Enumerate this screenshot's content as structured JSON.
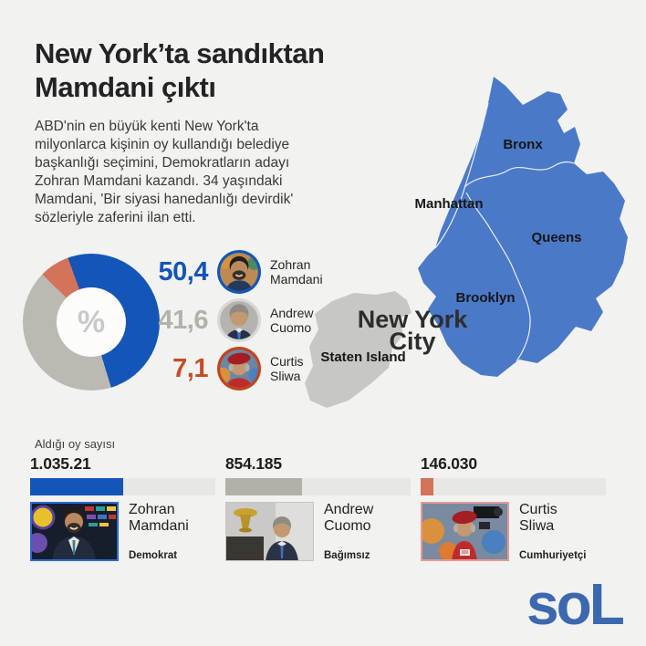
{
  "header": {
    "title_line1": "New York’ta sandıktan",
    "title_line2": "Mamdani çıktı",
    "paragraph": "ABD'nin en büyük kenti New York'ta\nmilyonlarca kişinin oy kullandığı belediye\nbaşkanlığı seçimini, Demokratların adayı\nZohran Mamdani kazandı. 34 yaşındaki\nMamdani, 'Bir siyasi hanedanlığı devirdik'\nsözleriyle zaferini ilan etti."
  },
  "donut": {
    "center_symbol": "%"
  },
  "legend": [
    {
      "value": "50,4",
      "name_line1": "Zohran",
      "name_line2": "Mamdani",
      "color": "#1455b8"
    },
    {
      "value": "41,6",
      "name_line1": "Andrew",
      "name_line2": "Cuomo",
      "color": "#b3b1aa"
    },
    {
      "value": "7,1",
      "name_line1": "Curtis",
      "name_line2": "Sliwa",
      "color": "#c54c28"
    }
  ],
  "map": {
    "labels": {
      "bronx": "Bronx",
      "manhattan": "Manhattan",
      "queens": "Queens",
      "brooklyn": "Brooklyn",
      "staten_island": "Staten Island",
      "city_line1": "New York",
      "city_line2": "City"
    },
    "colors": {
      "boroughs_blue": "#4a79c8",
      "staten_gray": "#c7c7c3",
      "border": "#e9eef7"
    }
  },
  "votes": {
    "section_label": "Aldığı oy sayısı",
    "rows": [
      {
        "count": "1.035.21",
        "name_line1": "Zohran",
        "name_line2": "Mamdani",
        "party": "Demokrat",
        "pct": 50.4
      },
      {
        "count": "854.185",
        "name_line1": "Andrew",
        "name_line2": "Cuomo",
        "party": "Bağımsız",
        "pct": 41.6
      },
      {
        "count": "146.030",
        "name_line1": "Curtis",
        "name_line2": "Sliwa",
        "party": "Cumhuriyetçi",
        "pct": 7.1
      }
    ]
  },
  "footer": {
    "logo_text": "soL"
  },
  "colors": {
    "background": "#f2f2f0",
    "accent_blue": "#1455b8",
    "neutral_gray": "#b3b1aa",
    "accent_orange": "#d3735a",
    "logo_blue": "#3b68af"
  },
  "chart_data": [
    {
      "type": "pie",
      "donut": true,
      "title": "%",
      "labels": [
        "Zohran Mamdani",
        "Andrew Cuomo",
        "Curtis Sliwa"
      ],
      "values": [
        50.4,
        41.6,
        7.1
      ],
      "colors": [
        "#1455b8",
        "#bbb9b2",
        "#d3735a"
      ],
      "legend_position": "right",
      "start_angle_deg": -20
    },
    {
      "type": "bar",
      "title": "Aldığı oy sayısı",
      "categories": [
        "Zohran Mamdani",
        "Andrew Cuomo",
        "Curtis Sliwa"
      ],
      "value_labels": [
        "1.035.21",
        "854.185",
        "146.030"
      ],
      "values": [
        50.4,
        41.6,
        7.1
      ],
      "value_unit": "percent of track filled",
      "colors": [
        "#1455b8",
        "#b2b0a9",
        "#d3735a"
      ],
      "parties": [
        "Demokrat",
        "Bağımsız",
        "Cumhuriyetçi"
      ]
    }
  ]
}
